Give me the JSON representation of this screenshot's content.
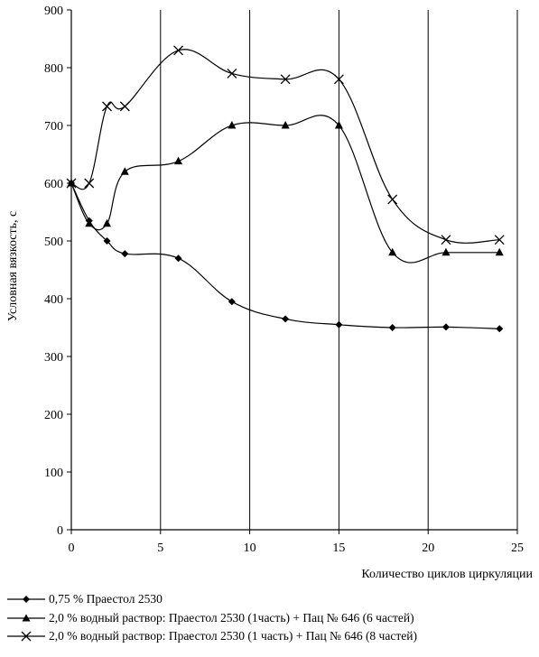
{
  "chart_data": {
    "type": "line",
    "ylabel": "Условная вязкость, с",
    "xlabel": "Количество циклов циркуляции",
    "xlim": [
      0,
      25
    ],
    "ylim": [
      0,
      900
    ],
    "xticks": [
      0,
      5,
      10,
      15,
      20,
      25
    ],
    "yticks": [
      0,
      100,
      200,
      300,
      400,
      500,
      600,
      700,
      800,
      900
    ],
    "grid": "vertical",
    "legend_position": "bottom",
    "series": [
      {
        "name": "0,75 % Праестол 2530",
        "marker": "diamond",
        "x": [
          0,
          1,
          2,
          3,
          6,
          9,
          12,
          15,
          18,
          21,
          24
        ],
        "y": [
          600,
          535,
          500,
          478,
          470,
          395,
          365,
          355,
          350,
          351,
          348
        ]
      },
      {
        "name": "2,0 % водный раствор: Праестол 2530 (1часть) + Пац № 646 (6 частей)",
        "marker": "triangle",
        "x": [
          0,
          1,
          2,
          3,
          6,
          9,
          12,
          15,
          18,
          21,
          24
        ],
        "y": [
          600,
          530,
          530,
          620,
          638,
          700,
          700,
          700,
          480,
          480,
          480
        ]
      },
      {
        "name": "2,0 % водный раствор: Праестол 2530 (1 часть) + Пац № 646 (8 частей)",
        "marker": "x",
        "x": [
          0,
          1,
          2,
          3,
          6,
          9,
          12,
          15,
          18,
          21,
          24
        ],
        "y": [
          600,
          600,
          733,
          733,
          830,
          790,
          780,
          780,
          572,
          502,
          502
        ]
      }
    ]
  }
}
